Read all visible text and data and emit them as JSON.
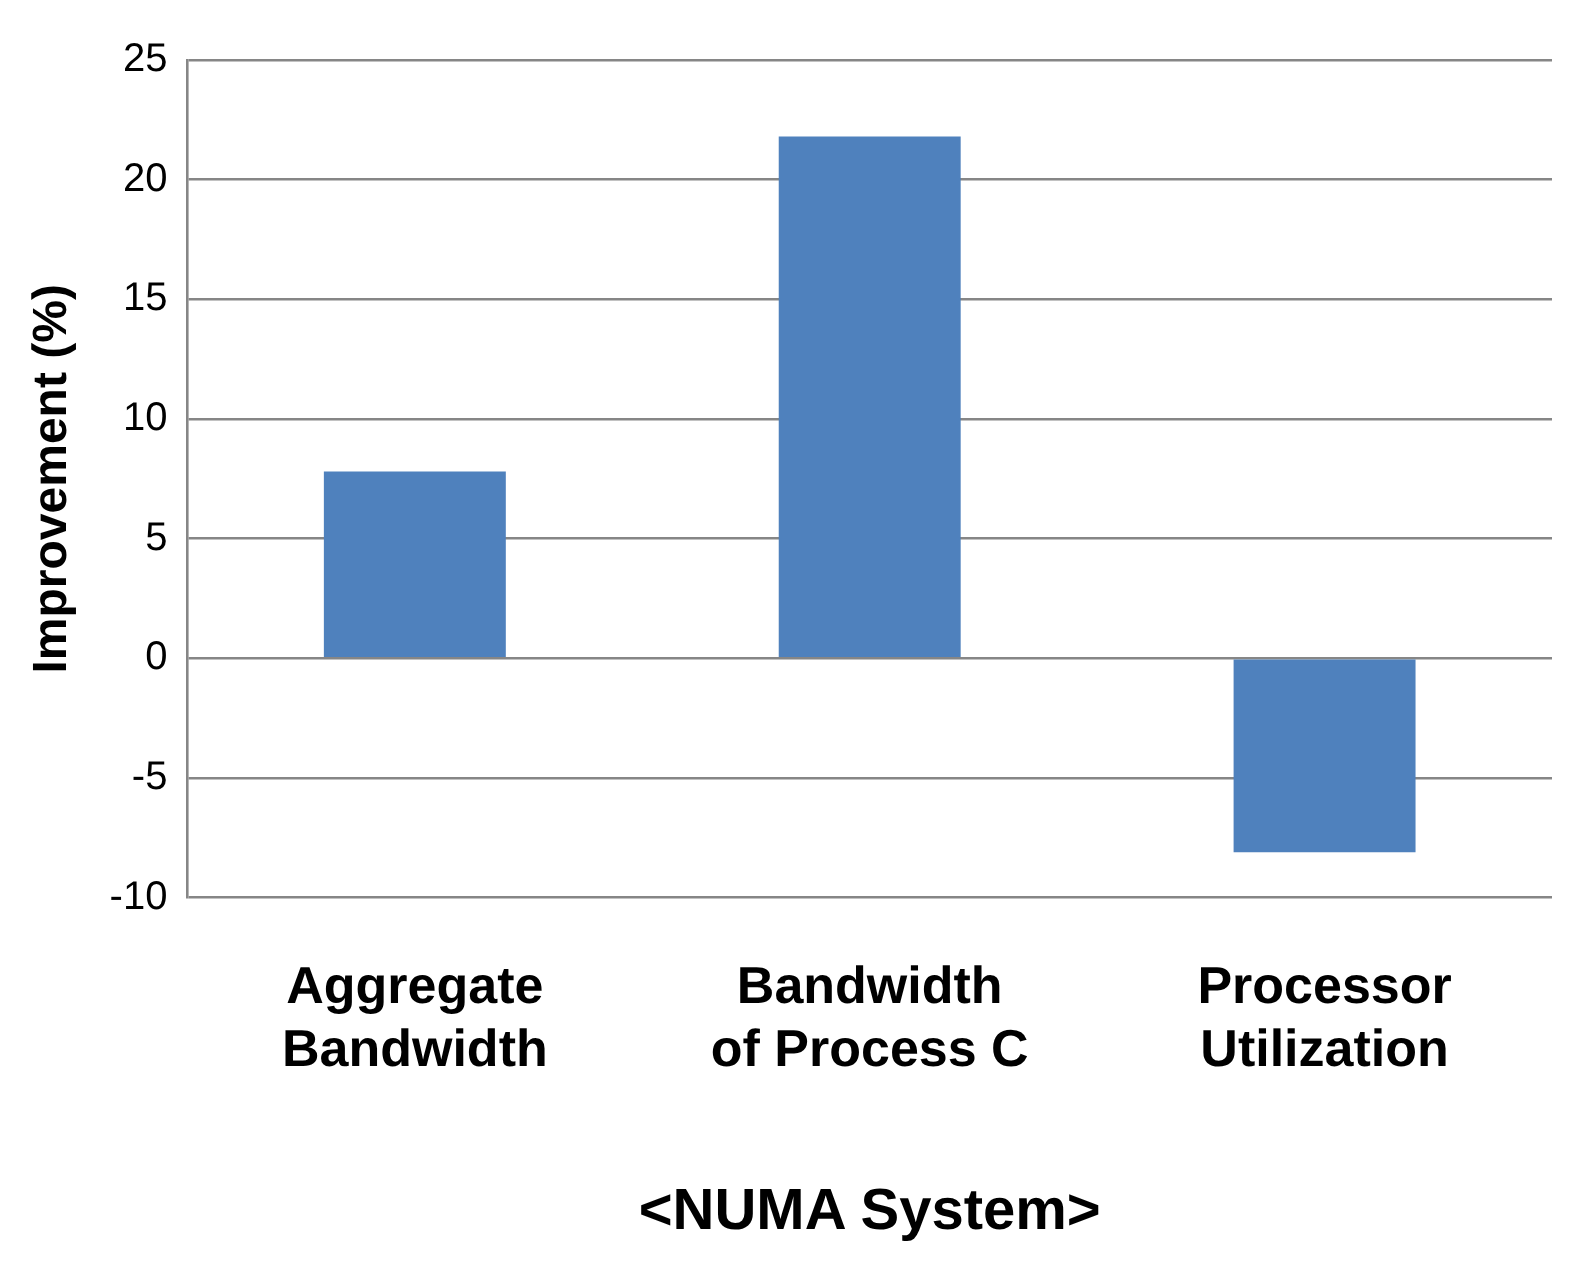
{
  "chart_data": {
    "type": "bar",
    "xlabel": "<NUMA System>",
    "ylabel": "Improvement (%)",
    "categories": [
      "Aggregate Bandwidth",
      "Bandwidth of Process C",
      "Processor Utilization"
    ],
    "values": [
      7.8,
      21.8,
      -8.1
    ],
    "color": "#4f81bd",
    "ylim": [
      -10,
      25
    ],
    "yticks": [
      -10,
      -5,
      0,
      5,
      10,
      15,
      20,
      25
    ],
    "grid": "y",
    "legend": false
  }
}
